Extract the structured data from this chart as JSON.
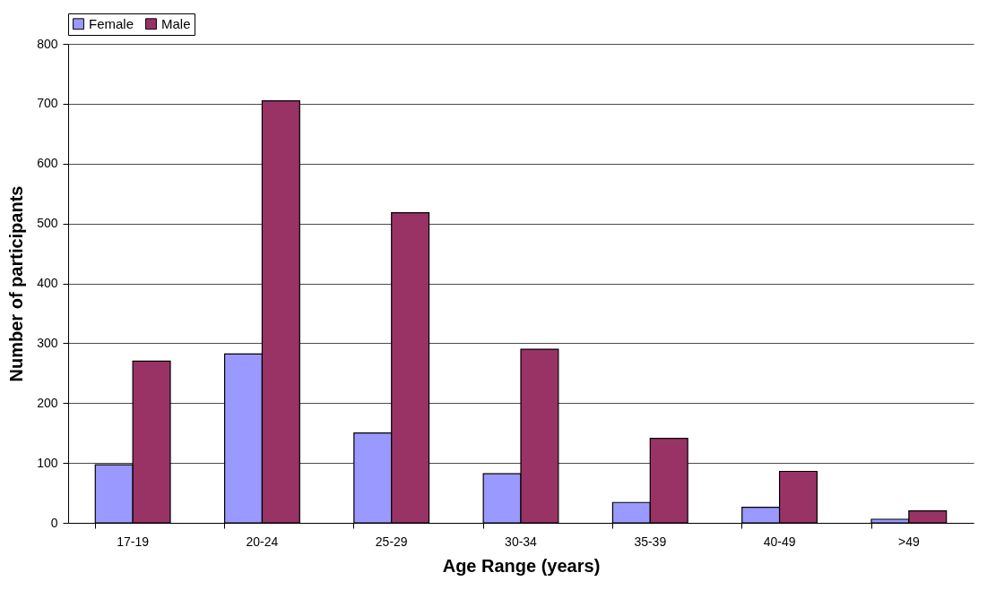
{
  "chart_data": {
    "type": "bar",
    "xlabel": "Age Range (years)",
    "ylabel": "Number of participants",
    "categories": [
      "17-19",
      "20-24",
      "25-29",
      "30-34",
      "35-39",
      "40-49",
      ">49"
    ],
    "series": [
      {
        "name": "Female",
        "color": "#9999ff",
        "values": [
          97,
          282,
          150,
          82,
          34,
          26,
          6
        ]
      },
      {
        "name": "Male",
        "color": "#993366",
        "values": [
          270,
          705,
          518,
          290,
          141,
          86,
          20
        ]
      }
    ],
    "ylim": [
      0,
      800
    ],
    "yticks": [
      0,
      100,
      200,
      300,
      400,
      500,
      600,
      700,
      800
    ],
    "grid": "y",
    "legend": "top"
  }
}
